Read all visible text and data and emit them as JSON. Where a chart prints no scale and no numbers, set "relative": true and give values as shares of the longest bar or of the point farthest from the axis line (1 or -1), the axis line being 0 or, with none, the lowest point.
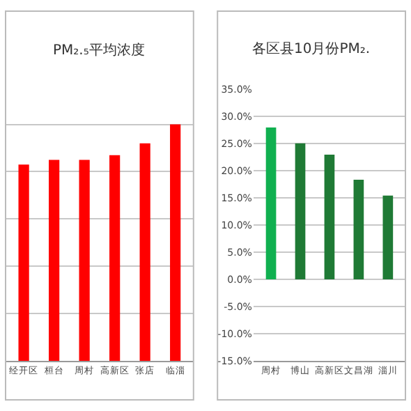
{
  "chart_data": [
    {
      "type": "bar",
      "title": "PM₂.₅平均浓度",
      "relative": true,
      "grid": "y",
      "legend": false,
      "categories": [
        "经开区",
        "桓台",
        "周村",
        "高新区",
        "张店",
        "临淄"
      ],
      "values": [
        0.83,
        0.85,
        0.85,
        0.87,
        0.92,
        1.0
      ],
      "color": "#ff0000"
    },
    {
      "type": "bar",
      "title": "各区县10月份PM₂.",
      "grid": "y",
      "legend": false,
      "categories": [
        "周村",
        "博山",
        "高新区",
        "文昌湖",
        "淄川"
      ],
      "values": [
        27.9,
        25.0,
        22.9,
        18.3,
        15.4
      ],
      "colors": [
        "#10b050",
        "#1f7a35",
        "#1f7a35",
        "#1f7a35",
        "#1f7a35"
      ],
      "ylim": [
        -15,
        35
      ],
      "yticks": [
        {
          "value": 35,
          "label": "35.0%"
        },
        {
          "value": 30,
          "label": "30.0%"
        },
        {
          "value": 25,
          "label": "25.0%"
        },
        {
          "value": 20,
          "label": "20.0%"
        },
        {
          "value": 15,
          "label": "15.0%"
        },
        {
          "value": 10,
          "label": "10.0%"
        },
        {
          "value": 5,
          "label": "5.0%"
        },
        {
          "value": 0,
          "label": "0.0%"
        },
        {
          "value": -5,
          "label": "-5.0%"
        },
        {
          "value": -10,
          "label": "-10.0%"
        },
        {
          "value": -15,
          "label": "-15.0%"
        }
      ]
    }
  ]
}
